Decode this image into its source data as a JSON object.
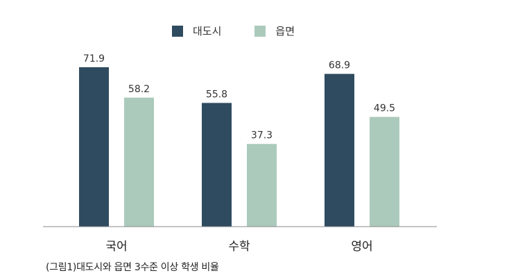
{
  "chart_data": {
    "type": "bar",
    "title": "",
    "xlabel": "",
    "ylabel": "",
    "ylim": [
      0,
      80
    ],
    "categories": [
      "국어",
      "수학",
      "영어"
    ],
    "series": [
      {
        "name": "대도시",
        "color": "#2f4b5f",
        "values": [
          71.9,
          55.8,
          68.9
        ]
      },
      {
        "name": "읍면",
        "color": "#abcabc",
        "values": [
          58.2,
          37.3,
          49.5
        ]
      }
    ],
    "legend_position": "top-center",
    "grid": false
  },
  "caption": "(그림1)대도시와 읍면 3수준 이상 학생 비율"
}
